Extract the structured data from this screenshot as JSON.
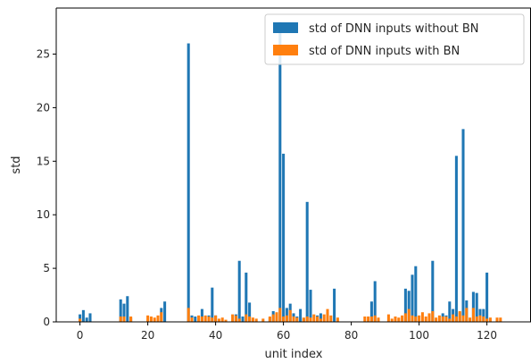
{
  "chart_data": {
    "type": "bar",
    "xlabel": "unit index",
    "ylabel": "std",
    "xlim": [
      -7,
      133
    ],
    "ylim": [
      0,
      29.3
    ],
    "xticks": [
      0,
      20,
      40,
      60,
      80,
      100,
      120
    ],
    "yticks": [
      0,
      5,
      10,
      15,
      20,
      25
    ],
    "legend_position": "top-right",
    "series": [
      {
        "name": "std of DNN inputs without BN",
        "color": "#1f77b4",
        "x": [
          0,
          1,
          2,
          3,
          12,
          13,
          14,
          15,
          24,
          25,
          32,
          33,
          34,
          36,
          38,
          39,
          40,
          46,
          47,
          48,
          49,
          50,
          56,
          57,
          58,
          59,
          60,
          61,
          62,
          63,
          64,
          65,
          66,
          67,
          68,
          70,
          71,
          73,
          75,
          86,
          87,
          96,
          97,
          98,
          99,
          103,
          104,
          107,
          108,
          109,
          110,
          111,
          112,
          113,
          114,
          116,
          117,
          118,
          119,
          120
        ],
        "values": [
          0.7,
          1.1,
          0.4,
          0.8,
          2.1,
          1.7,
          2.4,
          0.4,
          1.3,
          1.9,
          26.0,
          0.6,
          0.5,
          1.2,
          0.6,
          3.2,
          0.6,
          0.7,
          5.7,
          0.5,
          4.6,
          1.8,
          0.4,
          1.0,
          0.8,
          28.0,
          15.7,
          1.3,
          1.7,
          0.8,
          0.5,
          1.2,
          0.3,
          11.2,
          3.0,
          0.6,
          0.8,
          0.9,
          3.1,
          1.9,
          3.8,
          3.1,
          2.9,
          4.4,
          5.2,
          0.6,
          5.7,
          0.8,
          0.6,
          1.9,
          1.2,
          15.5,
          0.9,
          18.0,
          2.0,
          2.8,
          2.7,
          1.2,
          1.2,
          4.6
        ]
      },
      {
        "name": "std of DNN inputs with BN",
        "color": "#ff7f0e",
        "x": [
          0,
          12,
          13,
          15,
          20,
          21,
          22,
          23,
          24,
          32,
          33,
          35,
          36,
          37,
          38,
          39,
          40,
          41,
          42,
          43,
          45,
          46,
          47,
          49,
          50,
          51,
          52,
          54,
          56,
          57,
          58,
          59,
          60,
          61,
          62,
          63,
          64,
          66,
          67,
          68,
          69,
          70,
          71,
          72,
          73,
          74,
          76,
          84,
          85,
          86,
          87,
          88,
          91,
          92,
          93,
          94,
          95,
          96,
          97,
          98,
          99,
          100,
          101,
          102,
          103,
          104,
          105,
          106,
          107,
          108,
          109,
          110,
          111,
          112,
          113,
          114,
          115,
          116,
          117,
          118,
          119,
          120,
          121,
          123,
          124
        ],
        "values": [
          0.3,
          0.5,
          0.5,
          0.5,
          0.6,
          0.5,
          0.4,
          0.6,
          0.9,
          1.3,
          0.4,
          0.6,
          0.5,
          0.6,
          0.5,
          0.4,
          0.6,
          0.3,
          0.4,
          0.2,
          0.7,
          0.6,
          0.3,
          0.7,
          0.5,
          0.4,
          0.3,
          0.3,
          0.5,
          0.7,
          0.9,
          1.3,
          0.5,
          0.6,
          1.1,
          0.5,
          0.4,
          0.4,
          0.5,
          0.4,
          0.7,
          0.5,
          0.3,
          0.7,
          1.2,
          0.6,
          0.4,
          0.5,
          0.5,
          0.5,
          0.6,
          0.4,
          0.7,
          0.3,
          0.5,
          0.4,
          0.6,
          0.8,
          1.2,
          0.6,
          0.5,
          0.6,
          0.9,
          0.5,
          0.8,
          1.0,
          0.4,
          0.6,
          0.5,
          0.5,
          0.3,
          0.7,
          0.5,
          1.0,
          0.6,
          1.3,
          0.4,
          1.3,
          0.5,
          0.6,
          0.5,
          0.3,
          0.4,
          0.4,
          0.4
        ]
      }
    ]
  }
}
